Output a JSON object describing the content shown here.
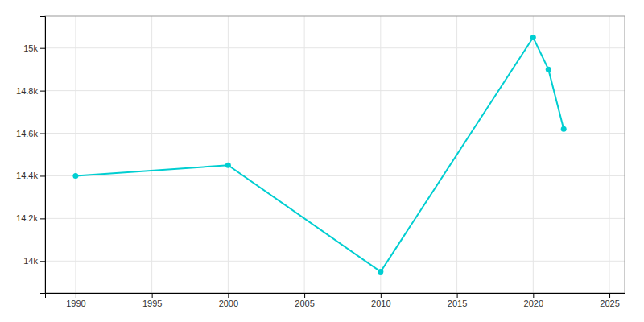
{
  "chart_data": {
    "type": "line",
    "x": [
      1990,
      2000,
      2010,
      2020,
      2021,
      2022
    ],
    "values": [
      14400,
      14450,
      13950,
      15050,
      14900,
      14620
    ],
    "color": "#00CED1",
    "marker": "circle",
    "xlim": [
      1988,
      2026
    ],
    "ylim": [
      13850,
      15150
    ],
    "xticks": [
      1990,
      1995,
      2000,
      2005,
      2010,
      2015,
      2020,
      2025
    ],
    "yticks": [
      {
        "value": 14000,
        "label": "14k"
      },
      {
        "value": 14200,
        "label": "14.2k"
      },
      {
        "value": 14400,
        "label": "14.4k"
      },
      {
        "value": 14600,
        "label": "14.6k"
      },
      {
        "value": 14800,
        "label": "14.8k"
      },
      {
        "value": 15000,
        "label": "15k"
      }
    ],
    "grid": true
  }
}
